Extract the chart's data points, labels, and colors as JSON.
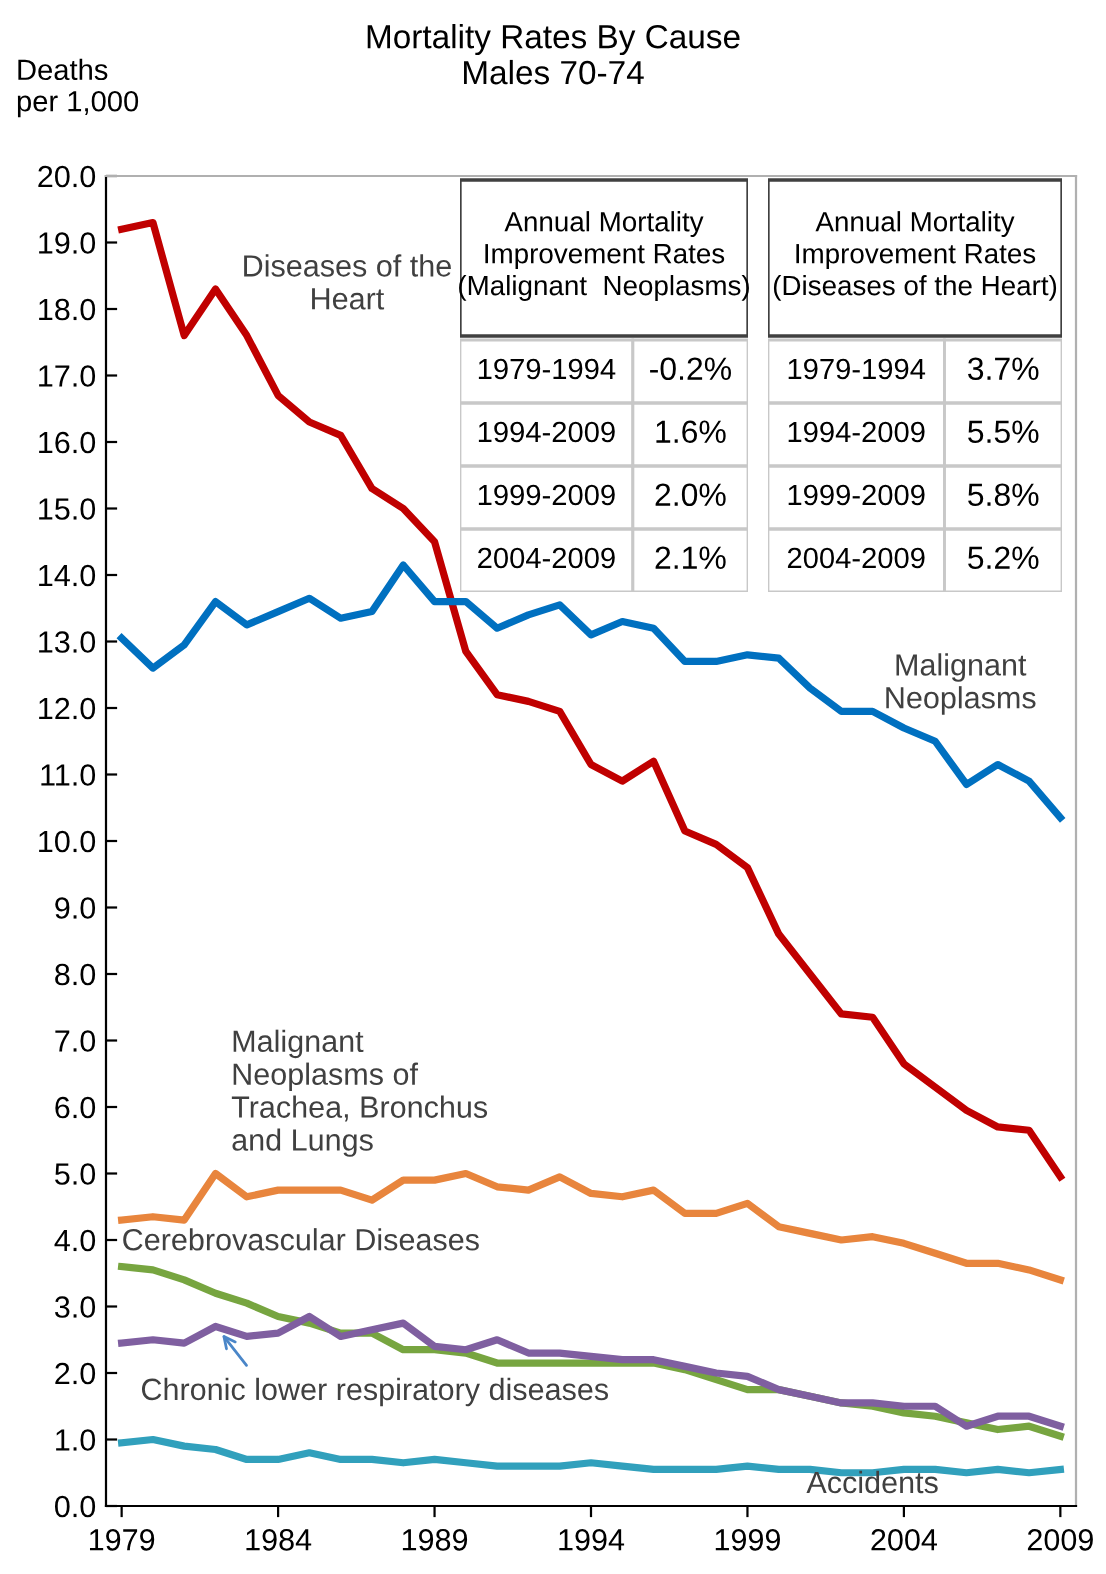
{
  "chart_data": [
    {
      "type": "line",
      "title": "Mortality Rates By Cause",
      "subtitle": "Males 70-74",
      "ylabel": "Deaths\nper 1,000",
      "x": [
        1979,
        1980,
        1981,
        1982,
        1983,
        1984,
        1985,
        1986,
        1987,
        1988,
        1989,
        1990,
        1991,
        1992,
        1993,
        1994,
        1995,
        1996,
        1997,
        1998,
        1999,
        2000,
        2001,
        2002,
        2003,
        2004,
        2005,
        2006,
        2007,
        2008,
        2009
      ],
      "xlim": [
        1978.5,
        2009.5
      ],
      "xticks": [
        1979,
        1984,
        1989,
        1994,
        1999,
        2004,
        2009
      ],
      "ylim": [
        0,
        20
      ],
      "yticks": [
        {
          "value": 0,
          "label": "0.0"
        },
        {
          "value": 1,
          "label": "1.0"
        },
        {
          "value": 2,
          "label": "2.0"
        },
        {
          "value": 3,
          "label": "3.0"
        },
        {
          "value": 4,
          "label": "4.0"
        },
        {
          "value": 5,
          "label": "5.0"
        },
        {
          "value": 6,
          "label": "6.0"
        },
        {
          "value": 7,
          "label": "7.0"
        },
        {
          "value": 8,
          "label": "8.0"
        },
        {
          "value": 9,
          "label": "9.0"
        },
        {
          "value": 10,
          "label": "10.0"
        },
        {
          "value": 11,
          "label": "11.0"
        },
        {
          "value": 12,
          "label": "12.0"
        },
        {
          "value": 13,
          "label": "13.0"
        },
        {
          "value": 14,
          "label": "14.0"
        },
        {
          "value": 15,
          "label": "15.0"
        },
        {
          "value": 16,
          "label": "16.0"
        },
        {
          "value": 17,
          "label": "17.0"
        },
        {
          "value": 18,
          "label": "18.0"
        },
        {
          "value": 19,
          "label": "19.0"
        },
        {
          "value": 20,
          "label": "20.0"
        }
      ],
      "grid": false,
      "marker": "none",
      "line_style": "solid",
      "series": [
        {
          "name": "Diseases of the\nHeart",
          "color": "#c00000",
          "values": [
            19.2,
            19.3,
            17.6,
            18.3,
            17.6,
            16.7,
            16.3,
            16.1,
            15.3,
            15.0,
            14.5,
            12.85,
            12.2,
            12.1,
            11.95,
            11.15,
            10.9,
            11.2,
            10.15,
            9.95,
            9.6,
            8.6,
            8.0,
            7.4,
            7.35,
            6.65,
            6.3,
            5.95,
            5.7,
            5.65,
            4.95
          ]
        },
        {
          "name": "Malignant\nNeoplasms",
          "color": "#0070c0",
          "values": [
            13.05,
            12.6,
            12.95,
            13.6,
            13.25,
            13.45,
            13.65,
            13.35,
            13.45,
            14.15,
            13.6,
            13.6,
            13.2,
            13.4,
            13.55,
            13.1,
            13.3,
            13.2,
            12.7,
            12.7,
            12.8,
            12.75,
            12.3,
            11.95,
            11.95,
            11.7,
            11.5,
            10.85,
            11.15,
            10.9,
            10.35
          ]
        },
        {
          "name": "Malignant\nNeoplasms of\nTrachea, Bronchus\nand Lungs",
          "color": "#e8853d",
          "values": [
            4.3,
            4.35,
            4.3,
            5.0,
            4.65,
            4.75,
            4.75,
            4.75,
            4.6,
            4.9,
            4.9,
            5.0,
            4.8,
            4.75,
            4.95,
            4.7,
            4.65,
            4.75,
            4.4,
            4.4,
            4.55,
            4.2,
            4.1,
            4.0,
            4.05,
            3.95,
            3.8,
            3.65,
            3.65,
            3.55,
            3.4
          ]
        },
        {
          "name": "Cerebrovascular Diseases",
          "color": "#77a540",
          "values": [
            3.6,
            3.55,
            3.4,
            3.2,
            3.05,
            2.85,
            2.75,
            2.6,
            2.6,
            2.35,
            2.35,
            2.3,
            2.15,
            2.15,
            2.15,
            2.15,
            2.15,
            2.15,
            2.05,
            1.9,
            1.75,
            1.75,
            1.65,
            1.55,
            1.5,
            1.4,
            1.35,
            1.25,
            1.15,
            1.2,
            1.05
          ]
        },
        {
          "name": "Chronic lower respiratory diseases",
          "color": "#7f5fa0",
          "values": [
            2.45,
            2.5,
            2.45,
            2.7,
            2.55,
            2.6,
            2.85,
            2.55,
            2.65,
            2.75,
            2.4,
            2.35,
            2.5,
            2.3,
            2.3,
            2.25,
            2.2,
            2.2,
            2.1,
            2.0,
            1.95,
            1.75,
            1.65,
            1.55,
            1.55,
            1.5,
            1.5,
            1.2,
            1.35,
            1.35,
            1.2
          ]
        },
        {
          "name": "Accidents",
          "color": "#31a0bc",
          "values": [
            0.95,
            1.0,
            0.9,
            0.85,
            0.7,
            0.7,
            0.8,
            0.7,
            0.7,
            0.65,
            0.7,
            0.65,
            0.6,
            0.6,
            0.6,
            0.65,
            0.6,
            0.55,
            0.55,
            0.55,
            0.6,
            0.55,
            0.55,
            0.5,
            0.5,
            0.55,
            0.55,
            0.5,
            0.55,
            0.5,
            0.55
          ]
        }
      ]
    },
    {
      "type": "other",
      "title": "Annual Mortality\nImprovement Rates\n(Malignant  Neoplasms)",
      "annotations": [
        "1979-1994",
        "-0.2%",
        "1994-2009",
        "1.6%",
        "1999-2009",
        "2.0%",
        "2004-2009",
        "2.1%"
      ]
    },
    {
      "type": "other",
      "title": "Annual Mortality\nImprovement Rates\n(Diseases of the Heart)",
      "annotations": [
        "1979-1994",
        "3.7%",
        "1994-2009",
        "5.5%",
        "1999-2009",
        "5.8%",
        "2004-2009",
        "5.2%"
      ]
    }
  ]
}
